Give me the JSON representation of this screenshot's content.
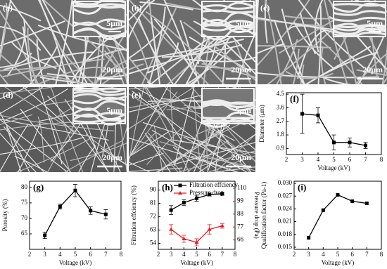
{
  "images": [
    {
      "label": "(a)",
      "inset_scale": "5μm",
      "scale": "20μm"
    },
    {
      "label": "(b)",
      "inset_scale": "5μm",
      "scale": "20μm"
    },
    {
      "label": "(c)",
      "inset_scale": "5μm",
      "scale": "20μm"
    },
    {
      "label": "(d)",
      "inset_scale": "5μm",
      "scale": "20μm"
    },
    {
      "label": "(e)",
      "inset_scale": "5μm",
      "scale": "20μm"
    }
  ],
  "chart_data": [
    {
      "type": "line",
      "label": "(f)",
      "xlabel": "Voltage (kV)",
      "ylabel": "Diameter (μm)",
      "x": [
        3,
        4,
        5,
        6,
        7
      ],
      "values": [
        3.2,
        3.1,
        1.3,
        1.3,
        1.1
      ],
      "errors": [
        1.3,
        0.5,
        0.5,
        0.3,
        0.2
      ],
      "color": "#000000",
      "xlim": [
        2,
        8
      ],
      "xticks": [
        2,
        3,
        4,
        5,
        6,
        7,
        8
      ],
      "ylim": [
        0.5,
        4.6
      ],
      "yticks": [
        0.9,
        1.8,
        2.7,
        3.6,
        4.5
      ]
    },
    {
      "type": "line",
      "label": "(g)",
      "xlabel": "Voltage (kV)",
      "ylabel": "Porosity (%)",
      "x": [
        3,
        4,
        5,
        6,
        7
      ],
      "values": [
        64.5,
        73.8,
        79,
        72.5,
        71.3
      ],
      "errors": [
        1,
        0.8,
        2,
        1.2,
        1.5
      ],
      "color": "#000000",
      "xlim": [
        2,
        8
      ],
      "xticks": [
        2,
        3,
        4,
        5,
        6,
        7,
        8
      ],
      "ylim": [
        60,
        82
      ],
      "yticks": [
        65,
        70,
        75,
        80
      ]
    },
    {
      "type": "line",
      "label": "(h)",
      "xlabel": "Voltage (kV)",
      "ylabel": "Filtration effciency (%)",
      "y2label": "Pressure drop (Pa)",
      "x": [
        3,
        4,
        5,
        6,
        7
      ],
      "series": [
        {
          "name": "Filtration effciency",
          "color": "#000000",
          "values": [
            76.5,
            81.5,
            84.5,
            87,
            87.5
          ],
          "errors": [
            3,
            2,
            2,
            1,
            1
          ]
        },
        {
          "name": "Pressure drop",
          "color": "#e8191c",
          "axis": "y2",
          "values": [
            75,
            67,
            64,
            75,
            78
          ],
          "errors": [
            4,
            3,
            3,
            4,
            2
          ]
        }
      ],
      "xlim": [
        2,
        8
      ],
      "xticks": [
        2,
        3,
        4,
        5,
        6,
        7,
        8
      ],
      "ylim": [
        50,
        96
      ],
      "yticks": [
        54,
        63,
        72,
        81,
        90
      ],
      "y2lim": [
        58,
        116
      ],
      "y2ticks": [
        66,
        77,
        88,
        99,
        110
      ]
    },
    {
      "type": "line",
      "label": "(i)",
      "xlabel": "Voltage (kV)",
      "ylabel": "Qualification factor (Pa-1)",
      "x": [
        3,
        4,
        5,
        6,
        7
      ],
      "values": [
        0.0172,
        0.0237,
        0.0273,
        0.0258,
        0.0253
      ],
      "color": "#000000",
      "xlim": [
        2,
        8
      ],
      "xticks": [
        2,
        3,
        4,
        5,
        6,
        7,
        8
      ],
      "ylim": [
        0.0145,
        0.0305
      ],
      "yticks": [
        0.015,
        0.018,
        0.021,
        0.024,
        0.027,
        {
          "value": 0.03,
          "label": "0.030"
        }
      ]
    }
  ]
}
